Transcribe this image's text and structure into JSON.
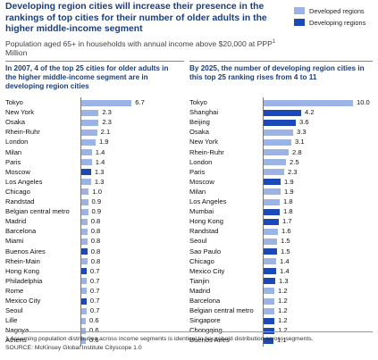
{
  "title": "Developing region cities will increase their presence in the rankings of top cities for their number of older adults in the higher middle-income segment",
  "subtitle": "Population aged 65+ in households with annual income above $20,000 at PPP",
  "subtitle_footnote_marker": "1",
  "subtitle_unit": "Million",
  "legend": [
    {
      "label": "Developed regions",
      "color": "#9cb3e6"
    },
    {
      "label": "Developing regions",
      "color": "#1b49b8"
    }
  ],
  "colors": {
    "developed": "#9cb3e6",
    "developing": "#1b49b8",
    "axis": "#777777",
    "title": "#1c3e7a"
  },
  "footnote": "1  Assuming population distribution across income segments is identical to household distribution across segments.",
  "source": "SOURCE: McKinsey Global Institute Cityscope 1.0",
  "chart_data": [
    {
      "type": "bar",
      "orientation": "horizontal",
      "title": "In 2007, 4 of the top 25 cities for older adults in the higher middle-income segment are in developing region cities",
      "xlim": [
        0,
        10
      ],
      "categories": [
        "Tokyo",
        "New York",
        "Osaka",
        "Rhein-Ruhr",
        "London",
        "Milan",
        "Paris",
        "Moscow",
        "Los Angeles",
        "Chicago",
        "Randstad",
        "Belgian central metro",
        "Madrid",
        "Barcelona",
        "Miami",
        "Buenos Aires",
        "Rhein-Main",
        "Hong Kong",
        "Philadelphia",
        "Rome",
        "Mexico City",
        "Seoul",
        "Lille",
        "Nagoya",
        "Athens"
      ],
      "values": [
        6.7,
        2.3,
        2.3,
        2.1,
        1.9,
        1.4,
        1.4,
        1.3,
        1.3,
        1.0,
        0.9,
        0.9,
        0.8,
        0.8,
        0.8,
        0.8,
        0.8,
        0.7,
        0.7,
        0.7,
        0.7,
        0.7,
        0.6,
        0.6,
        0.6
      ],
      "value_labels": [
        "6.7",
        "2.3",
        "2.3",
        "2.1",
        "1.9",
        "1.4",
        "1.4",
        "1.3",
        "1.3",
        "1.0",
        "0.9",
        "0.9",
        "0.8",
        "0.8",
        "0.8",
        "0.8",
        "0.8",
        "0.7",
        "0.7",
        "0.7",
        "0.7",
        "0.7",
        "0.6",
        "0.6",
        "0.6"
      ],
      "region": [
        "developed",
        "developed",
        "developed",
        "developed",
        "developed",
        "developed",
        "developed",
        "developing",
        "developed",
        "developed",
        "developed",
        "developed",
        "developed",
        "developed",
        "developed",
        "developing",
        "developed",
        "developing",
        "developed",
        "developed",
        "developing",
        "developed",
        "developed",
        "developed",
        "developed"
      ]
    },
    {
      "type": "bar",
      "orientation": "horizontal",
      "title": "By 2025, the number of developing region cities in this top 25 ranking rises from 4 to 11",
      "xlim": [
        0,
        10
      ],
      "categories": [
        "Tokyo",
        "Shanghai",
        "Beijing",
        "Osaka",
        "New York",
        "Rhein-Ruhr",
        "London",
        "Paris",
        "Moscow",
        "Milan",
        "Los Angeles",
        "Mumbai",
        "Hong Kong",
        "Randstad",
        "Seoul",
        "Sao Paulo",
        "Chicago",
        "Mexico City",
        "Tianjin",
        "Madrid",
        "Barcelona",
        "Belgian central metro",
        "Singapore",
        "Chongqing",
        "Buenos Aires"
      ],
      "values": [
        10.0,
        4.2,
        3.6,
        3.3,
        3.1,
        2.8,
        2.5,
        2.3,
        1.9,
        1.9,
        1.8,
        1.8,
        1.7,
        1.6,
        1.5,
        1.5,
        1.4,
        1.4,
        1.3,
        1.2,
        1.2,
        1.2,
        1.2,
        1.2,
        1.1
      ],
      "value_labels": [
        "10.0",
        "4.2",
        "3.6",
        "3.3",
        "3.1",
        "2.8",
        "2.5",
        "2.3",
        "1.9",
        "1.9",
        "1.8",
        "1.8",
        "1.7",
        "1.6",
        "1.5",
        "1.5",
        "1.4",
        "1.4",
        "1.3",
        "1.2",
        "1.2",
        "1.2",
        "1.2",
        "1.2",
        "1.1"
      ],
      "region": [
        "developed",
        "developing",
        "developing",
        "developed",
        "developed",
        "developed",
        "developed",
        "developed",
        "developing",
        "developed",
        "developed",
        "developing",
        "developing",
        "developed",
        "developed",
        "developing",
        "developed",
        "developing",
        "developing",
        "developed",
        "developed",
        "developed",
        "developing",
        "developing",
        "developing"
      ]
    }
  ]
}
